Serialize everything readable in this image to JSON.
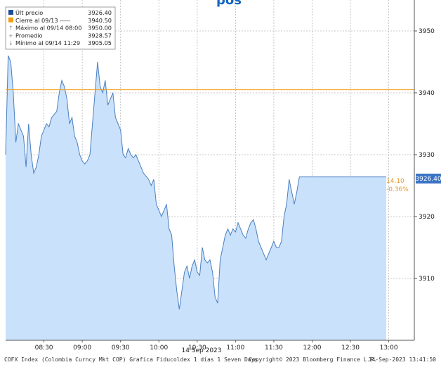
{
  "chart_data": {
    "type": "area",
    "title": "",
    "xlabel": "14 Sep 2023",
    "ylabel": "",
    "ylim": [
      3900,
      3955
    ],
    "xlim": [
      "08:00",
      "13:20"
    ],
    "x_ticks": [
      "08:30",
      "09:00",
      "09:30",
      "10:00",
      "10:30",
      "11:00",
      "11:30",
      "12:00",
      "12:30",
      "13:00"
    ],
    "y_ticks": [
      3910,
      3920,
      3930,
      3940,
      3950
    ],
    "y_axis_side": "right",
    "grid": true,
    "legend_position": "top-left",
    "series": [
      {
        "name": "Últ precio",
        "color": "#4a7fc1",
        "fill": "#c9e1fb",
        "x": [
          "08:00",
          "08:02",
          "08:04",
          "08:06",
          "08:08",
          "08:10",
          "08:12",
          "08:14",
          "08:16",
          "08:18",
          "08:20",
          "08:22",
          "08:24",
          "08:26",
          "08:28",
          "08:30",
          "08:32",
          "08:34",
          "08:36",
          "08:38",
          "08:40",
          "08:42",
          "08:44",
          "08:46",
          "08:48",
          "08:50",
          "08:52",
          "08:54",
          "08:56",
          "08:58",
          "09:00",
          "09:02",
          "09:04",
          "09:06",
          "09:08",
          "09:10",
          "09:12",
          "09:14",
          "09:16",
          "09:18",
          "09:20",
          "09:22",
          "09:24",
          "09:26",
          "09:28",
          "09:30",
          "09:32",
          "09:34",
          "09:36",
          "09:38",
          "09:40",
          "09:42",
          "09:44",
          "09:46",
          "09:48",
          "09:50",
          "09:52",
          "09:54",
          "09:56",
          "09:58",
          "10:00",
          "10:02",
          "10:04",
          "10:06",
          "10:08",
          "10:10",
          "10:12",
          "10:14",
          "10:16",
          "10:18",
          "10:20",
          "10:22",
          "10:24",
          "10:26",
          "10:28",
          "10:30",
          "10:32",
          "10:34",
          "10:36",
          "10:38",
          "10:40",
          "10:42",
          "10:44",
          "10:46",
          "10:48",
          "10:50",
          "10:52",
          "10:54",
          "10:56",
          "10:58",
          "11:00",
          "11:02",
          "11:04",
          "11:06",
          "11:08",
          "11:10",
          "11:12",
          "11:14",
          "11:16",
          "11:18",
          "11:20",
          "11:22",
          "11:24",
          "11:26",
          "11:28",
          "11:30",
          "11:32",
          "11:34",
          "11:36",
          "11:38",
          "11:40",
          "11:42",
          "11:44",
          "11:46",
          "11:48",
          "11:50",
          "11:52",
          "11:54",
          "11:56",
          "11:58",
          "12:00",
          "12:02",
          "12:04",
          "12:06",
          "12:08",
          "12:10",
          "12:12",
          "12:14",
          "12:16",
          "12:18",
          "12:20",
          "12:22",
          "12:24",
          "12:26",
          "12:28",
          "12:30",
          "12:32",
          "12:34",
          "12:36",
          "12:38",
          "12:40",
          "12:42",
          "12:44",
          "12:46",
          "12:48",
          "12:50",
          "12:52",
          "12:54",
          "12:56",
          "12:58"
        ],
        "values": [
          3930.0,
          3946.0,
          3945.0,
          3940.0,
          3932.0,
          3935.0,
          3934.0,
          3933.0,
          3928.0,
          3935.0,
          3930.0,
          3927.0,
          3928.0,
          3930.0,
          3933.0,
          3934.0,
          3935.0,
          3934.5,
          3936.0,
          3936.5,
          3937.0,
          3940.0,
          3942.0,
          3941.0,
          3939.0,
          3935.0,
          3936.0,
          3933.0,
          3932.0,
          3930.0,
          3929.0,
          3928.5,
          3929.0,
          3930.0,
          3935.0,
          3940.0,
          3945.0,
          3941.0,
          3940.0,
          3942.0,
          3938.0,
          3939.0,
          3940.0,
          3936.0,
          3935.0,
          3934.0,
          3930.0,
          3929.5,
          3931.0,
          3930.0,
          3929.5,
          3930.0,
          3929.0,
          3928.0,
          3927.0,
          3926.5,
          3926.0,
          3925.0,
          3926.0,
          3922.0,
          3921.0,
          3920.0,
          3921.0,
          3922.0,
          3918.0,
          3917.0,
          3912.0,
          3908.0,
          3905.0,
          3908.0,
          3911.0,
          3912.0,
          3910.0,
          3912.0,
          3913.0,
          3911.0,
          3910.5,
          3915.0,
          3913.0,
          3912.5,
          3913.0,
          3911.0,
          3907.0,
          3906.0,
          3913.0,
          3915.0,
          3917.0,
          3918.0,
          3917.0,
          3918.0,
          3917.5,
          3919.0,
          3918.0,
          3917.0,
          3916.5,
          3918.0,
          3919.0,
          3919.5,
          3918.0,
          3916.0,
          3915.0,
          3914.0,
          3913.0,
          3914.0,
          3915.0,
          3916.0,
          3915.0,
          3915.0,
          3916.0,
          3920.0,
          3922.0,
          3926.0,
          3924.0,
          3922.0,
          3924.0,
          3926.4,
          3926.4,
          3926.4,
          3926.4,
          3926.4,
          3926.4,
          3926.4,
          3926.4,
          3926.4,
          3926.4,
          3926.4,
          3926.4,
          3926.4,
          3926.4,
          3926.4,
          3926.4,
          3926.4,
          3926.4,
          3926.4,
          3926.4,
          3926.4,
          3926.4,
          3926.4,
          3926.4,
          3926.4,
          3926.4,
          3926.4,
          3926.4,
          3926.4,
          3926.4,
          3926.4,
          3926.4,
          3926.4,
          3926.4,
          3926.4
        ]
      },
      {
        "name": "Cierre al 09/13",
        "color": "#f39c12",
        "values": [
          3940.5
        ]
      }
    ],
    "current_value": 3926.4,
    "current_value_label": "3926.40",
    "change_label": "14.10",
    "change_pct_label": "-0.36%",
    "legend": [
      {
        "icon": "square",
        "color": "#1f4e99",
        "label": "Últ precio",
        "style": "",
        "value": "3926.40"
      },
      {
        "icon": "square",
        "color": "#f39c12",
        "label": "Cierre al 09/13",
        "style": "-----",
        "value": "3940.50"
      },
      {
        "icon": "up-arrow",
        "color": "#888888",
        "label": "Máximo al 09/14 08:00",
        "style": "",
        "value": "3950.00"
      },
      {
        "icon": "plus",
        "color": "#888888",
        "label": "Promedio",
        "style": "",
        "value": "3928.57"
      },
      {
        "icon": "down-arrow",
        "color": "#888888",
        "label": "Mínimo al 09/14 11:29",
        "style": "",
        "value": "3905.05"
      }
    ]
  },
  "header": {
    "partial_title": "pos"
  },
  "footer": {
    "index_info": "COFX Index (Colombia Curncy Mkt COP) Grafica Fiducoldex 1 días 1 Seven Days",
    "copyright": "Copyright© 2023 Bloomberg Finance L.P.",
    "timestamp": "14-Sep-2023 13:41:50"
  }
}
